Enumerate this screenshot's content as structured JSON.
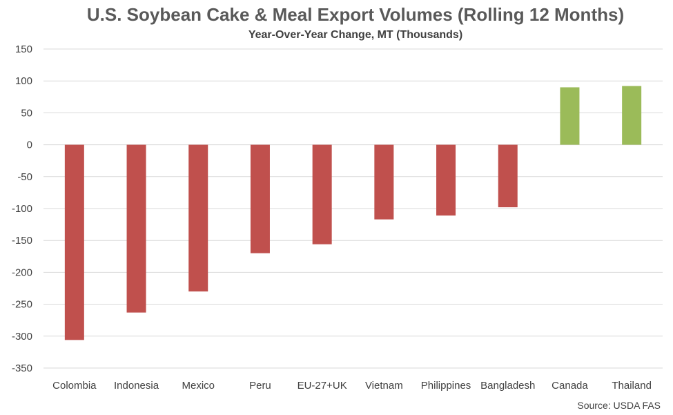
{
  "chart_data": {
    "type": "bar",
    "title": "U.S. Soybean Cake & Meal Export Volumes (Rolling 12 Months)",
    "subtitle": "Year-Over-Year Change, MT (Thousands)",
    "xlabel": "",
    "ylabel": "",
    "ylim": [
      -350,
      150
    ],
    "yticks": [
      150,
      100,
      50,
      0,
      -50,
      -100,
      -150,
      -200,
      -250,
      -300,
      -350
    ],
    "grid": true,
    "categories": [
      "Colombia",
      "Indonesia",
      "Mexico",
      "Peru",
      "EU-27+UK",
      "Vietnam",
      "Philippines",
      "Bangladesh",
      "Canada",
      "Thailand"
    ],
    "values": [
      -306,
      -263,
      -230,
      -170,
      -156,
      -117,
      -111,
      -98,
      90,
      92
    ],
    "negative_color": "#c0504d",
    "positive_color": "#9bbb59",
    "source": "Source: USDA FAS"
  }
}
